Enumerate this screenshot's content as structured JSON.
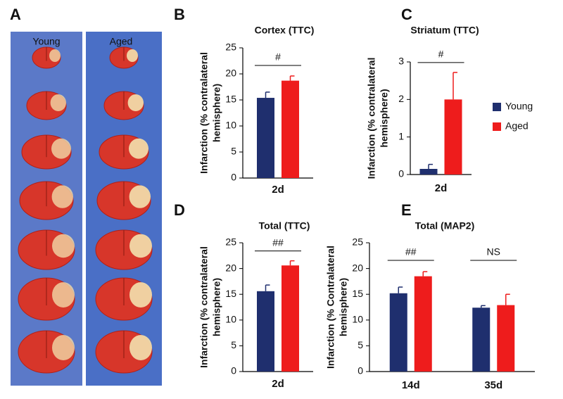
{
  "image_panel": {
    "panel": "A",
    "columns": [
      "Young",
      "Aged"
    ]
  },
  "legend": {
    "entries": [
      {
        "name": "Young",
        "color": "#1f2f6e"
      },
      {
        "name": "Aged",
        "color": "#ee1c1c"
      }
    ]
  },
  "chart_data": [
    {
      "type": "bar",
      "panel": "B",
      "title": "Cortex (TTC)",
      "ylabel": [
        "Infarction (% contralateral",
        "hemisphere)"
      ],
      "categories": [
        "2d"
      ],
      "annotations": [
        "#"
      ],
      "series": [
        {
          "color": "#1f2f6e",
          "values": [
            15.4
          ],
          "errors": [
            1.1
          ]
        },
        {
          "color": "#ee1c1c",
          "values": [
            18.7
          ],
          "errors": [
            0.9
          ]
        }
      ],
      "ylim": [
        0,
        25
      ],
      "yticks": [
        0,
        5,
        10,
        15,
        20,
        25
      ]
    },
    {
      "type": "bar",
      "panel": "C",
      "title": "Striatum (TTC)",
      "ylabel": [
        "Infarction (% contralateral",
        "hemisphere)"
      ],
      "categories": [
        "2d"
      ],
      "annotations": [
        "#"
      ],
      "series": [
        {
          "color": "#1f2f6e",
          "values": [
            0.15
          ],
          "errors": [
            0.12
          ]
        },
        {
          "color": "#ee1c1c",
          "values": [
            2.0
          ],
          "errors": [
            0.72
          ]
        }
      ],
      "ylim": [
        0,
        3
      ],
      "yticks": [
        0,
        1,
        2,
        3
      ]
    },
    {
      "type": "bar",
      "panel": "D",
      "title": "Total (TTC)",
      "ylabel": [
        "Infarction (% contralateral",
        "hemisphere)"
      ],
      "categories": [
        "2d"
      ],
      "annotations": [
        "##"
      ],
      "series": [
        {
          "color": "#1f2f6e",
          "values": [
            15.6
          ],
          "errors": [
            1.2
          ]
        },
        {
          "color": "#ee1c1c",
          "values": [
            20.6
          ],
          "errors": [
            0.9
          ]
        }
      ],
      "ylim": [
        0,
        25
      ],
      "yticks": [
        0,
        5,
        10,
        15,
        20,
        25
      ]
    },
    {
      "type": "bar",
      "panel": "E",
      "title": "Total (MAP2)",
      "ylabel": [
        "Infarction (% Contralateral",
        "hemisphere)"
      ],
      "categories": [
        "14d",
        "35d"
      ],
      "annotations": [
        "##",
        "NS"
      ],
      "series": [
        {
          "color": "#1f2f6e",
          "values": [
            15.2,
            12.4
          ],
          "errors": [
            1.2,
            0.4
          ]
        },
        {
          "color": "#ee1c1c",
          "values": [
            18.5,
            12.9
          ],
          "errors": [
            0.9,
            2.1
          ]
        }
      ],
      "ylim": [
        0,
        25
      ],
      "yticks": [
        0,
        5,
        10,
        15,
        20,
        25
      ]
    }
  ]
}
